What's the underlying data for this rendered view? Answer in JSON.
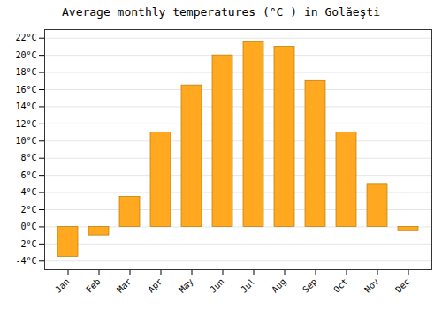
{
  "chart_data": {
    "type": "bar",
    "title": "Average monthly temperatures (°C ) in Golăeşti",
    "categories": [
      "Jan",
      "Feb",
      "Mar",
      "Apr",
      "May",
      "Jun",
      "Jul",
      "Aug",
      "Sep",
      "Oct",
      "Nov",
      "Dec"
    ],
    "values": [
      -3.5,
      -1.0,
      3.5,
      11.0,
      16.5,
      20.0,
      21.5,
      21.0,
      17.0,
      11.0,
      5.0,
      -0.5
    ],
    "color": "#FFA820",
    "ylim": [
      -5,
      23
    ],
    "yticks": [
      {
        "value": -4,
        "label": "-4°C"
      },
      {
        "value": -2,
        "label": "-2°C"
      },
      {
        "value": 0,
        "label": "0°C"
      },
      {
        "value": 2,
        "label": "2°C"
      },
      {
        "value": 4,
        "label": "4°C"
      },
      {
        "value": 6,
        "label": "6°C"
      },
      {
        "value": 8,
        "label": "8°C"
      },
      {
        "value": 10,
        "label": "10°C"
      },
      {
        "value": 12,
        "label": "12°C"
      },
      {
        "value": 14,
        "label": "14°C"
      },
      {
        "value": 16,
        "label": "16°C"
      },
      {
        "value": 18,
        "label": "18°C"
      },
      {
        "value": 20,
        "label": "20°C"
      },
      {
        "value": 22,
        "label": "22°C"
      }
    ],
    "grid": true
  }
}
